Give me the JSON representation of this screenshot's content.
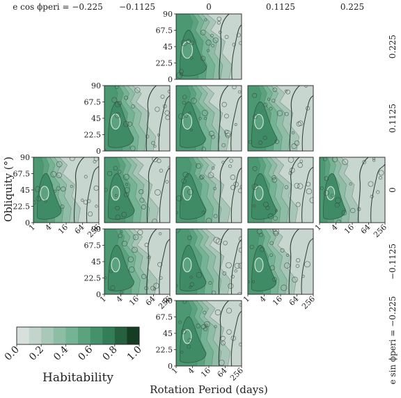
{
  "chart_data": {
    "type": "heatmap",
    "title": "",
    "xlabel": "Rotation Period (days)",
    "ylabel": "Obliquity (°)",
    "x_scale": "log2",
    "x_ticks": [
      "1",
      "4",
      "16",
      "64",
      "256"
    ],
    "y_ticks": [
      "0",
      "22.5",
      "45",
      "67.5",
      "90"
    ],
    "xlim": [
      1,
      256
    ],
    "ylim": [
      0,
      90
    ],
    "column_labels": [
      "e cos ϕperi = −0.225",
      "−0.1125",
      "0",
      "0.1125",
      "0.225"
    ],
    "row_labels": [
      "0.225",
      "0.1125",
      "0",
      "−0.1125",
      "e sin ϕperi = −0.225"
    ],
    "panels": [
      {
        "e_cos": 0,
        "e_sin": 0.225,
        "dryness": 0.15,
        "hole": 0.45
      },
      {
        "e_cos": -0.1125,
        "e_sin": 0.1125,
        "dryness": 0.3,
        "hole": 0.3
      },
      {
        "e_cos": 0,
        "e_sin": 0.1125,
        "dryness": 0.25,
        "hole": 0.3
      },
      {
        "e_cos": 0.1125,
        "e_sin": 0.1125,
        "dryness": 0.3,
        "hole": 0.25
      },
      {
        "e_cos": -0.225,
        "e_sin": 0,
        "dryness": 0.45,
        "hole": 0.2
      },
      {
        "e_cos": -0.1125,
        "e_sin": 0,
        "dryness": 0.2,
        "hole": 0.2
      },
      {
        "e_cos": 0,
        "e_sin": 0,
        "dryness": 0.2,
        "hole": 0.2
      },
      {
        "e_cos": 0.1125,
        "e_sin": 0,
        "dryness": 0.35,
        "hole": 0.2
      },
      {
        "e_cos": 0.225,
        "e_sin": 0,
        "dryness": 0.7,
        "hole": 0.15
      },
      {
        "e_cos": -0.1125,
        "e_sin": -0.1125,
        "dryness": 0.25,
        "hole": 0.2
      },
      {
        "e_cos": 0,
        "e_sin": -0.1125,
        "dryness": 0.2,
        "hole": 0.2
      },
      {
        "e_cos": 0.1125,
        "e_sin": -0.1125,
        "dryness": 0.4,
        "hole": 0.2
      },
      {
        "e_cos": 0,
        "e_sin": -0.225,
        "dryness": 0.2,
        "hole": 0.2
      }
    ],
    "colorbar": {
      "label": "Habitability",
      "min": 0,
      "max": 1,
      "ticks": [
        "0.0",
        "0.2",
        "0.4",
        "0.6",
        "0.8",
        "1.0"
      ],
      "levels": 10,
      "colors": [
        "#d8e0dd",
        "#c2d4cb",
        "#a8c8b8",
        "#8ebda6",
        "#74b393",
        "#5ba37f",
        "#44926b",
        "#337e59",
        "#25603f",
        "#143d24"
      ]
    }
  }
}
